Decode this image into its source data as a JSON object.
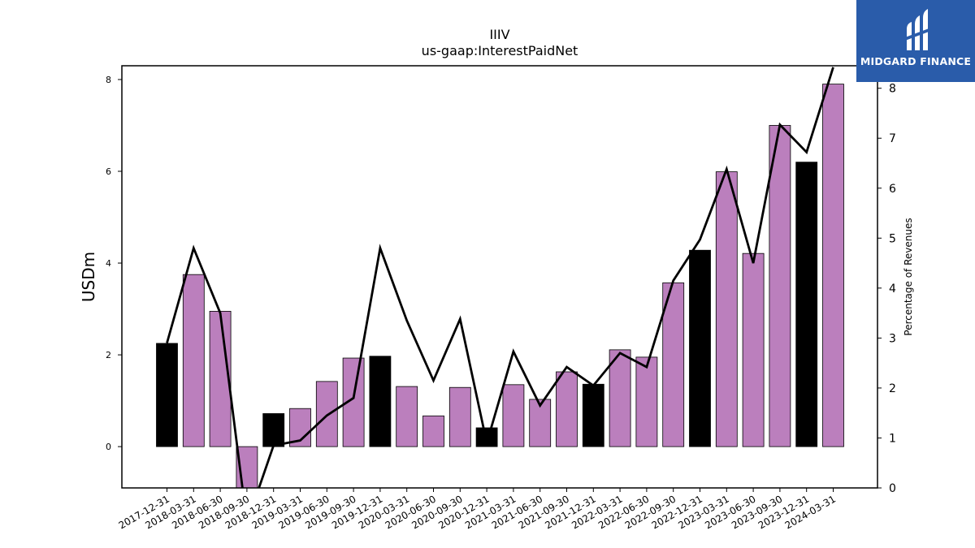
{
  "chart_data": {
    "type": "bar",
    "title": "IIIV",
    "subtitle": "us-gaap:InterestPaidNet",
    "ylabel": "USDm",
    "y2label": "Percentage of Revenues",
    "ylim": [
      -0.9,
      8.3
    ],
    "y2lim": [
      0,
      8.45
    ],
    "yticks": [
      0,
      2,
      4,
      6,
      8
    ],
    "y2ticks": [
      0,
      1,
      2,
      3,
      4,
      5,
      6,
      7,
      8
    ],
    "categories": [
      "2017-12-31",
      "2018-03-31",
      "2018-06-30",
      "2018-09-30",
      "2018-12-31",
      "2019-03-31",
      "2019-06-30",
      "2019-09-30",
      "2019-12-31",
      "2020-03-31",
      "2020-06-30",
      "2020-09-30",
      "2020-12-31",
      "2021-03-31",
      "2021-06-30",
      "2021-09-30",
      "2021-12-31",
      "2022-03-31",
      "2022-06-30",
      "2022-09-30",
      "2022-12-31",
      "2023-03-31",
      "2023-06-30",
      "2023-09-30",
      "2023-12-31",
      "2024-03-31"
    ],
    "series": [
      {
        "type": "bar",
        "axis": "left",
        "values": [
          2.25,
          3.75,
          2.95,
          -1.0,
          0.72,
          0.83,
          1.42,
          1.93,
          1.97,
          1.31,
          0.67,
          1.29,
          0.41,
          1.35,
          1.03,
          1.63,
          1.36,
          2.11,
          1.95,
          3.57,
          4.28,
          5.99,
          4.21,
          7.0,
          6.2,
          7.9
        ],
        "highlight": [
          true,
          false,
          false,
          false,
          true,
          false,
          false,
          false,
          true,
          false,
          false,
          false,
          true,
          false,
          false,
          false,
          true,
          false,
          false,
          false,
          true,
          false,
          false,
          false,
          true,
          false
        ]
      },
      {
        "type": "line",
        "axis": "right",
        "values": [
          2.9,
          4.8,
          3.5,
          -0.7,
          0.85,
          0.95,
          1.45,
          1.8,
          4.8,
          3.35,
          2.15,
          3.38,
          0.9,
          2.73,
          1.65,
          2.42,
          2.05,
          2.7,
          2.42,
          4.15,
          4.97,
          6.38,
          4.5,
          7.27,
          6.72,
          8.42
        ]
      }
    ],
    "colors": {
      "bar": "#bb7fbd",
      "bar_highlight": "#000000",
      "line": "#000000"
    }
  },
  "logo": {
    "text": "MIDGARD FINANCE",
    "bg": "#2a5caa"
  }
}
